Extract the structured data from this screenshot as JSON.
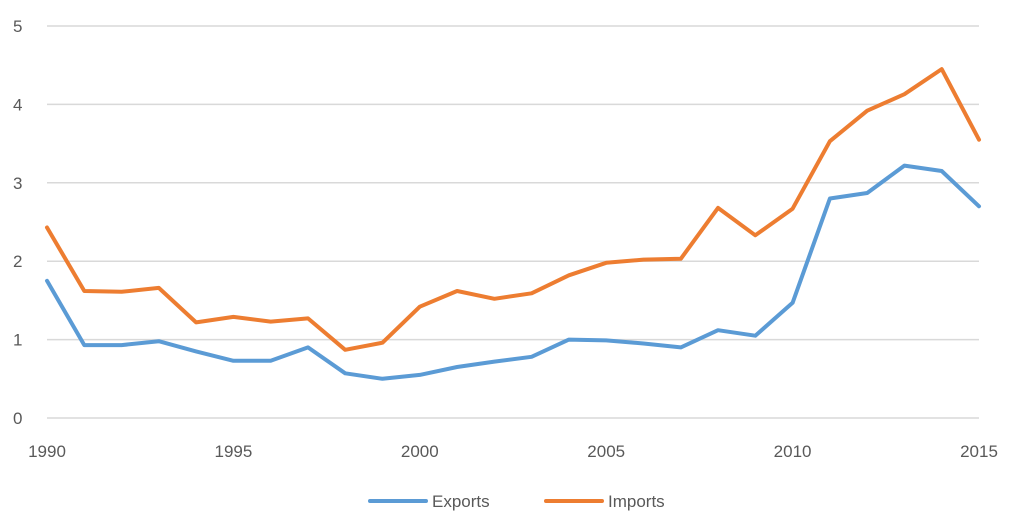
{
  "chart_data": {
    "type": "line",
    "title": "",
    "xlabel": "",
    "ylabel": "",
    "x": [
      1990,
      1991,
      1992,
      1993,
      1994,
      1995,
      1996,
      1997,
      1998,
      1999,
      2000,
      2001,
      2002,
      2003,
      2004,
      2005,
      2006,
      2007,
      2008,
      2009,
      2010,
      2011,
      2012,
      2013,
      2014,
      2015
    ],
    "xticks": [
      1990,
      1995,
      2000,
      2005,
      2010,
      2015
    ],
    "xlim": [
      1990,
      2015
    ],
    "yticks": [
      0,
      1,
      2,
      3,
      4,
      5
    ],
    "ylim": [
      0,
      5
    ],
    "grid": true,
    "legend_position": "bottom",
    "series": [
      {
        "name": "Exports",
        "color": "#5b9bd5",
        "values": [
          1.75,
          0.93,
          0.93,
          0.98,
          0.85,
          0.73,
          0.73,
          0.9,
          0.57,
          0.5,
          0.55,
          0.65,
          0.72,
          0.78,
          1.0,
          0.99,
          0.95,
          0.9,
          1.12,
          1.05,
          1.47,
          2.8,
          2.87,
          3.22,
          3.15,
          2.7
        ]
      },
      {
        "name": "Imports",
        "color": "#ed7d31",
        "values": [
          2.43,
          1.62,
          1.61,
          1.66,
          1.22,
          1.29,
          1.23,
          1.27,
          0.87,
          0.96,
          1.42,
          1.62,
          1.52,
          1.59,
          1.82,
          1.98,
          2.02,
          2.03,
          2.68,
          2.33,
          2.67,
          3.53,
          3.92,
          4.13,
          4.45,
          3.55
        ]
      }
    ]
  }
}
